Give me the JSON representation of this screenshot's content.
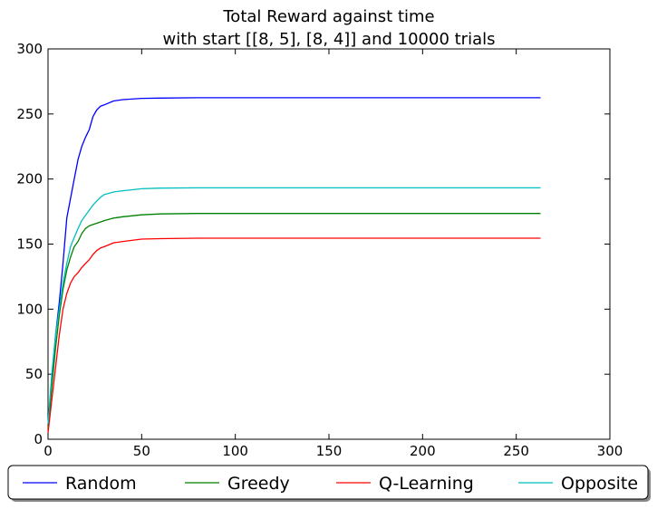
{
  "chart_data": {
    "type": "line",
    "title": "Total Reward against time",
    "subtitle": "with start [[8, 5], [8, 4]] and 10000 trials",
    "xlabel": "",
    "ylabel": "",
    "xlim": [
      0,
      300
    ],
    "ylim": [
      0,
      300
    ],
    "xticks": [
      0,
      50,
      100,
      150,
      200,
      250,
      300
    ],
    "yticks": [
      0,
      50,
      100,
      150,
      200,
      250,
      300
    ],
    "grid": false,
    "legend_position": "bottom",
    "series": [
      {
        "name": "Random",
        "color": "#0000ff",
        "x": [
          0,
          2,
          4,
          6,
          8,
          10,
          12,
          14,
          16,
          18,
          20,
          22,
          24,
          26,
          28,
          30,
          35,
          40,
          50,
          60,
          80,
          100,
          150,
          200,
          263
        ],
        "y": [
          10,
          45,
          80,
          105,
          135,
          170,
          185,
          200,
          215,
          225,
          232,
          238,
          248,
          253,
          256,
          257,
          260,
          261,
          262,
          262.2,
          262.5,
          262.5,
          262.5,
          262.5,
          262.5
        ]
      },
      {
        "name": "Greedy",
        "color": "#008000",
        "x": [
          0,
          2,
          4,
          6,
          8,
          10,
          12,
          14,
          16,
          18,
          20,
          22,
          24,
          26,
          28,
          30,
          35,
          40,
          50,
          60,
          80,
          100,
          150,
          200,
          263
        ],
        "y": [
          8,
          40,
          70,
          95,
          115,
          130,
          140,
          148,
          152,
          158,
          162,
          164,
          165,
          166,
          167,
          168,
          170,
          171,
          172.5,
          173.2,
          173.5,
          173.5,
          173.5,
          173.5,
          173.5
        ]
      },
      {
        "name": "Q-Learning",
        "color": "#ff0000",
        "x": [
          0,
          2,
          4,
          6,
          8,
          10,
          12,
          14,
          16,
          18,
          20,
          22,
          24,
          26,
          28,
          30,
          35,
          40,
          50,
          60,
          80,
          100,
          150,
          200,
          263
        ],
        "y": [
          5,
          30,
          55,
          80,
          100,
          112,
          120,
          125,
          128,
          132,
          135,
          138,
          142,
          145,
          147,
          148,
          151,
          152,
          153.8,
          154.2,
          154.5,
          154.5,
          154.5,
          154.5,
          154.5
        ]
      },
      {
        "name": "Opposite",
        "color": "#00bfbf",
        "x": [
          0,
          2,
          4,
          6,
          8,
          10,
          12,
          14,
          16,
          18,
          20,
          22,
          24,
          26,
          28,
          30,
          35,
          40,
          50,
          60,
          80,
          100,
          150,
          200,
          263
        ],
        "y": [
          12,
          50,
          80,
          100,
          120,
          135,
          148,
          155,
          162,
          168,
          172,
          176,
          180,
          183,
          186,
          188,
          190,
          191,
          192.5,
          193,
          193.2,
          193.2,
          193.2,
          193.2,
          193.2
        ]
      }
    ]
  }
}
